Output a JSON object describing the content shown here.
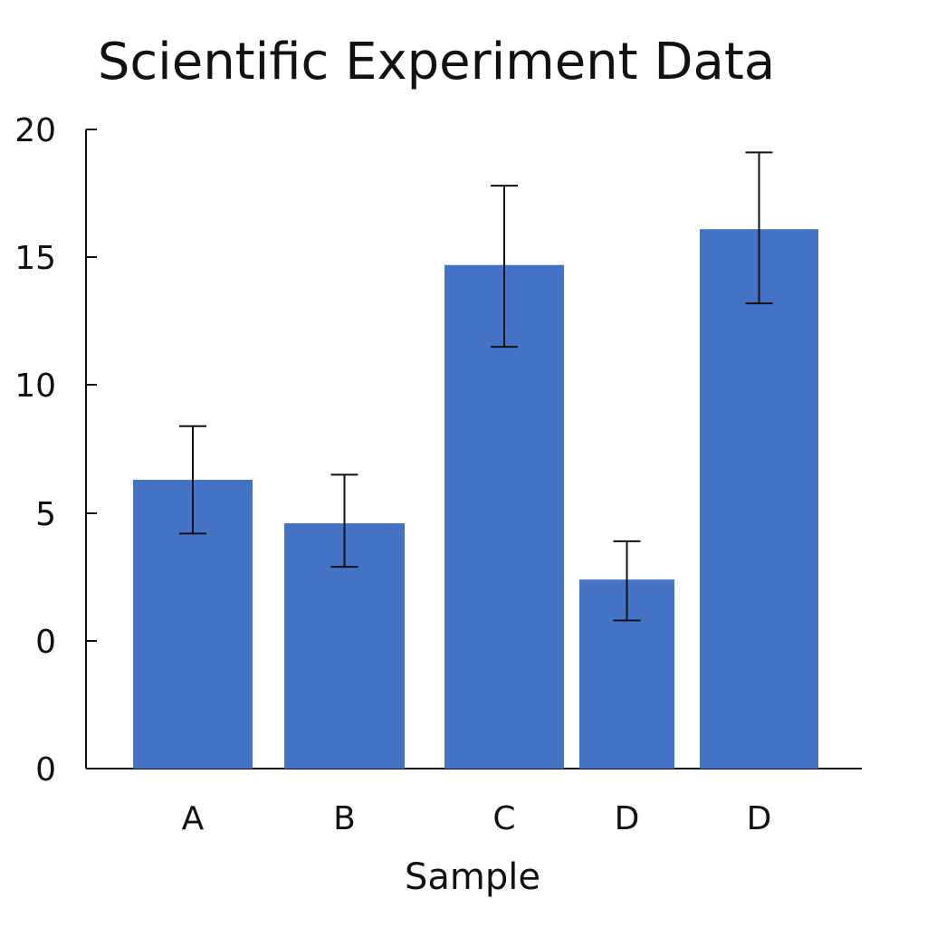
{
  "chart_data": {
    "type": "bar",
    "title": "Scientific Experiment Data",
    "xlabel": "Sample",
    "ylabel": "",
    "categories": [
      "A",
      "B",
      "C",
      "D",
      "D"
    ],
    "values": [
      6.3,
      4.6,
      14.7,
      2.4,
      16.1
    ],
    "error_low": [
      4.2,
      2.9,
      11.5,
      0.8,
      13.2
    ],
    "error_high": [
      8.4,
      6.5,
      17.8,
      3.9,
      19.1
    ],
    "y_tick_labels": [
      "0",
      "0",
      "5",
      "10",
      "15",
      "20"
    ],
    "ylim": [
      -5,
      20
    ],
    "grid": false,
    "legend": "none",
    "colors": {
      "bar": "#4472C4",
      "error_bar": "#111111",
      "axis": "#111111"
    }
  }
}
